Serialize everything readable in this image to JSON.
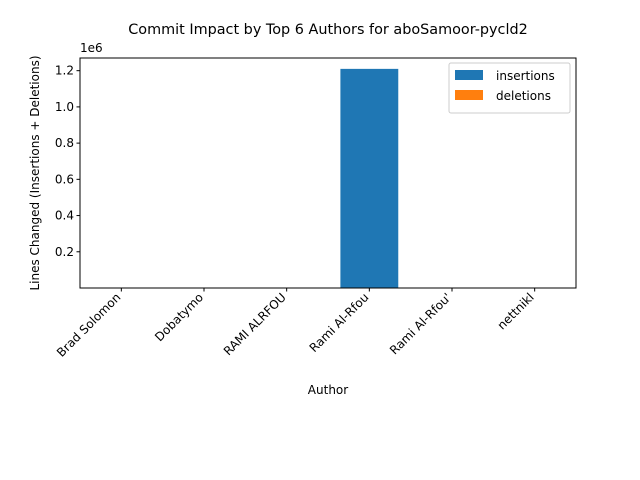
{
  "chart_data": {
    "type": "bar",
    "title": "Commit Impact by Top 6 Authors for aboSamoor-pycld2",
    "xlabel": "Author",
    "ylabel": "Lines Changed (Insertions + Deletions)",
    "y_offset_label": "1e6",
    "y_scale": 1000000,
    "ylim": [
      0,
      1270000
    ],
    "yticks": [
      200000,
      400000,
      600000,
      800000,
      1000000,
      1200000
    ],
    "ytick_labels": [
      "0.2",
      "0.4",
      "0.6",
      "0.8",
      "1.0",
      "1.2"
    ],
    "categories": [
      "Brad Solomon",
      "Dobatymo",
      "RAMI ALRFOU",
      "Rami Al-Rfou",
      "Rami Al-Rfou'",
      "nettnikl"
    ],
    "series": [
      {
        "name": "insertions",
        "color": "#1f77b4",
        "values": [
          100,
          100,
          100,
          1210000,
          100,
          100
        ]
      },
      {
        "name": "deletions",
        "color": "#ff7f0e",
        "values": [
          0,
          0,
          0,
          0,
          0,
          0
        ]
      }
    ],
    "legend_position": "top-right",
    "grid": false
  }
}
